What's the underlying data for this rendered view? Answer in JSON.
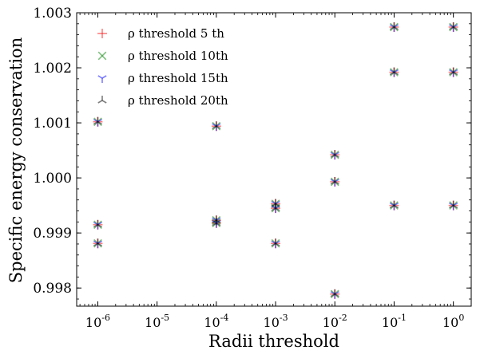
{
  "chart_data": {
    "type": "scatter",
    "title": "",
    "xlabel": "Radii threshold",
    "ylabel": "Specific energy conservation",
    "xscale": "log",
    "xlim": [
      4.4e-07,
      2.0
    ],
    "ylim": [
      0.99767,
      1.003
    ],
    "grid": false,
    "legend_position": "top-left",
    "xticks": [
      {
        "value": 1e-06,
        "base": "10",
        "exp": "-6"
      },
      {
        "value": 1e-05,
        "base": "10",
        "exp": "-5"
      },
      {
        "value": 0.0001,
        "base": "10",
        "exp": "-4"
      },
      {
        "value": 0.001,
        "base": "10",
        "exp": "-3"
      },
      {
        "value": 0.01,
        "base": "10",
        "exp": "-2"
      },
      {
        "value": 0.1,
        "base": "10",
        "exp": "-1"
      },
      {
        "value": 1,
        "base": "10",
        "exp": "0"
      }
    ],
    "yticks": [
      {
        "value": 0.998,
        "label": "0.998"
      },
      {
        "value": 0.999,
        "label": "0.999"
      },
      {
        "value": 1.0,
        "label": "1.000"
      },
      {
        "value": 1.001,
        "label": "1.001"
      },
      {
        "value": 1.002,
        "label": "1.002"
      },
      {
        "value": 1.003,
        "label": "1.003"
      }
    ],
    "series": [
      {
        "name": "ρ threshold 5 th",
        "marker": "plus",
        "color": "#ff0000",
        "alpha": 0.5,
        "points": [
          [
            1e-06,
            1.00102
          ],
          [
            1e-06,
            0.99915
          ],
          [
            1e-06,
            0.99881
          ],
          [
            0.0001,
            1.00094
          ],
          [
            0.0001,
            0.99923
          ],
          [
            0.0001,
            0.99918
          ],
          [
            0.001,
            0.99953
          ],
          [
            0.001,
            0.99945
          ],
          [
            0.001,
            0.99881
          ],
          [
            0.01,
            1.00042
          ],
          [
            0.01,
            0.99993
          ],
          [
            0.01,
            0.99789
          ],
          [
            0.1,
            1.00274
          ],
          [
            0.1,
            1.00192
          ],
          [
            0.1,
            0.9995
          ],
          [
            1,
            1.00274
          ],
          [
            1,
            1.00192
          ],
          [
            1,
            0.9995
          ]
        ]
      },
      {
        "name": "ρ threshold 10th",
        "marker": "x",
        "color": "#008000",
        "alpha": 0.5,
        "points": [
          [
            1e-06,
            1.00102
          ],
          [
            1e-06,
            0.99915
          ],
          [
            1e-06,
            0.99881
          ],
          [
            0.0001,
            1.00094
          ],
          [
            0.0001,
            0.99923
          ],
          [
            0.0001,
            0.99918
          ],
          [
            0.001,
            0.99953
          ],
          [
            0.001,
            0.99945
          ],
          [
            0.001,
            0.99881
          ],
          [
            0.01,
            1.00042
          ],
          [
            0.01,
            0.99993
          ],
          [
            0.01,
            0.99789
          ],
          [
            0.1,
            1.00274
          ],
          [
            0.1,
            1.00192
          ],
          [
            0.1,
            0.9995
          ],
          [
            1,
            1.00274
          ],
          [
            1,
            1.00192
          ],
          [
            1,
            0.9995
          ]
        ]
      },
      {
        "name": "ρ threshold 15th",
        "marker": "tri_down",
        "color": "#0000ff",
        "alpha": 0.5,
        "points": [
          [
            1e-06,
            1.00102
          ],
          [
            1e-06,
            0.99915
          ],
          [
            1e-06,
            0.99881
          ],
          [
            0.0001,
            1.00094
          ],
          [
            0.0001,
            0.99923
          ],
          [
            0.0001,
            0.99918
          ],
          [
            0.001,
            0.99953
          ],
          [
            0.001,
            0.99945
          ],
          [
            0.001,
            0.99881
          ],
          [
            0.01,
            1.00042
          ],
          [
            0.01,
            0.99993
          ],
          [
            0.01,
            0.99789
          ],
          [
            0.1,
            1.00274
          ],
          [
            0.1,
            1.00192
          ],
          [
            0.1,
            0.9995
          ],
          [
            1,
            1.00274
          ],
          [
            1,
            1.00192
          ],
          [
            1,
            0.9995
          ]
        ]
      },
      {
        "name": "ρ threshold 20th",
        "marker": "tri_up",
        "color": "#000000",
        "alpha": 0.5,
        "points": [
          [
            1e-06,
            1.00102
          ],
          [
            1e-06,
            0.99915
          ],
          [
            1e-06,
            0.99881
          ],
          [
            0.0001,
            1.00094
          ],
          [
            0.0001,
            0.99923
          ],
          [
            0.0001,
            0.99918
          ],
          [
            0.001,
            0.99953
          ],
          [
            0.001,
            0.99945
          ],
          [
            0.001,
            0.99881
          ],
          [
            0.01,
            1.00042
          ],
          [
            0.01,
            0.99993
          ],
          [
            0.01,
            0.99789
          ],
          [
            0.1,
            1.00274
          ],
          [
            0.1,
            1.00192
          ],
          [
            0.1,
            0.9995
          ],
          [
            1,
            1.00274
          ],
          [
            1,
            1.00192
          ],
          [
            1,
            0.9995
          ]
        ]
      }
    ]
  }
}
